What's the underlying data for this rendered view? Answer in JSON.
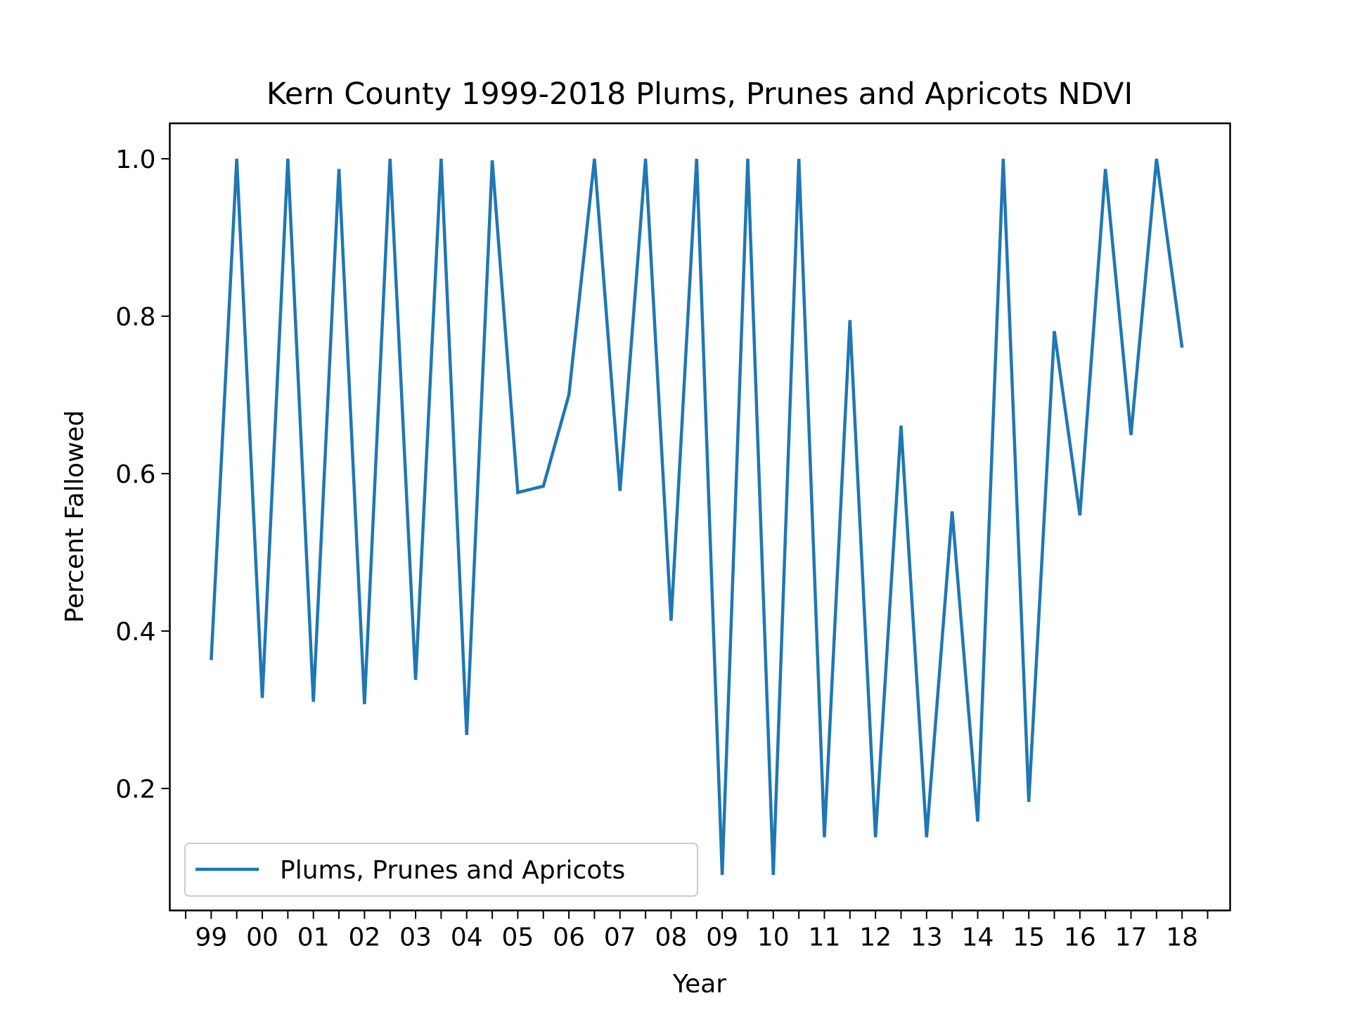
{
  "chart_data": {
    "type": "line",
    "title": "Kern County 1999-2018 Plums, Prunes and Apricots NDVI",
    "xlabel": "Year",
    "ylabel": "Percent Fallowed",
    "x_tick_labels": [
      "99",
      "00",
      "01",
      "02",
      "03",
      "04",
      "05",
      "06",
      "07",
      "08",
      "09",
      "10",
      "11",
      "12",
      "13",
      "14",
      "15",
      "16",
      "17",
      "18"
    ],
    "y_ticks": [
      0.2,
      0.4,
      0.6,
      0.8,
      1.0
    ],
    "y_tick_labels": [
      "0.2",
      "0.4",
      "0.6",
      "0.8",
      "1.0"
    ],
    "xlim": [
      1998.19,
      2018.94
    ],
    "ylim": [
      0.045,
      1.045
    ],
    "grid": false,
    "legend_position": "lower-left",
    "series": [
      {
        "name": "Plums, Prunes and Apricots",
        "color": "#1f77b4",
        "x": [
          1999.0,
          1999.5,
          2000.0,
          2000.5,
          2001.0,
          2001.5,
          2002.0,
          2002.5,
          2003.0,
          2003.5,
          2004.0,
          2004.5,
          2005.0,
          2005.5,
          2006.0,
          2006.5,
          2007.0,
          2007.5,
          2008.0,
          2008.5,
          2009.0,
          2009.5,
          2010.0,
          2010.5,
          2011.0,
          2011.5,
          2012.0,
          2012.5,
          2013.0,
          2013.5,
          2014.0,
          2014.5,
          2015.0,
          2015.5,
          2016.0,
          2016.5,
          2017.0,
          2017.5,
          2018.0
        ],
        "y": [
          0.363,
          1.0,
          0.315,
          1.0,
          0.31,
          0.987,
          0.307,
          1.0,
          0.338,
          1.0,
          0.268,
          0.998,
          0.576,
          0.584,
          0.7,
          1.0,
          0.578,
          1.0,
          0.413,
          1.0,
          0.09,
          1.0,
          0.09,
          1.0,
          0.138,
          0.795,
          0.138,
          0.661,
          0.138,
          0.552,
          0.158,
          1.0,
          0.183,
          0.781,
          0.547,
          0.987,
          0.649,
          1.0,
          0.76
        ]
      }
    ]
  }
}
